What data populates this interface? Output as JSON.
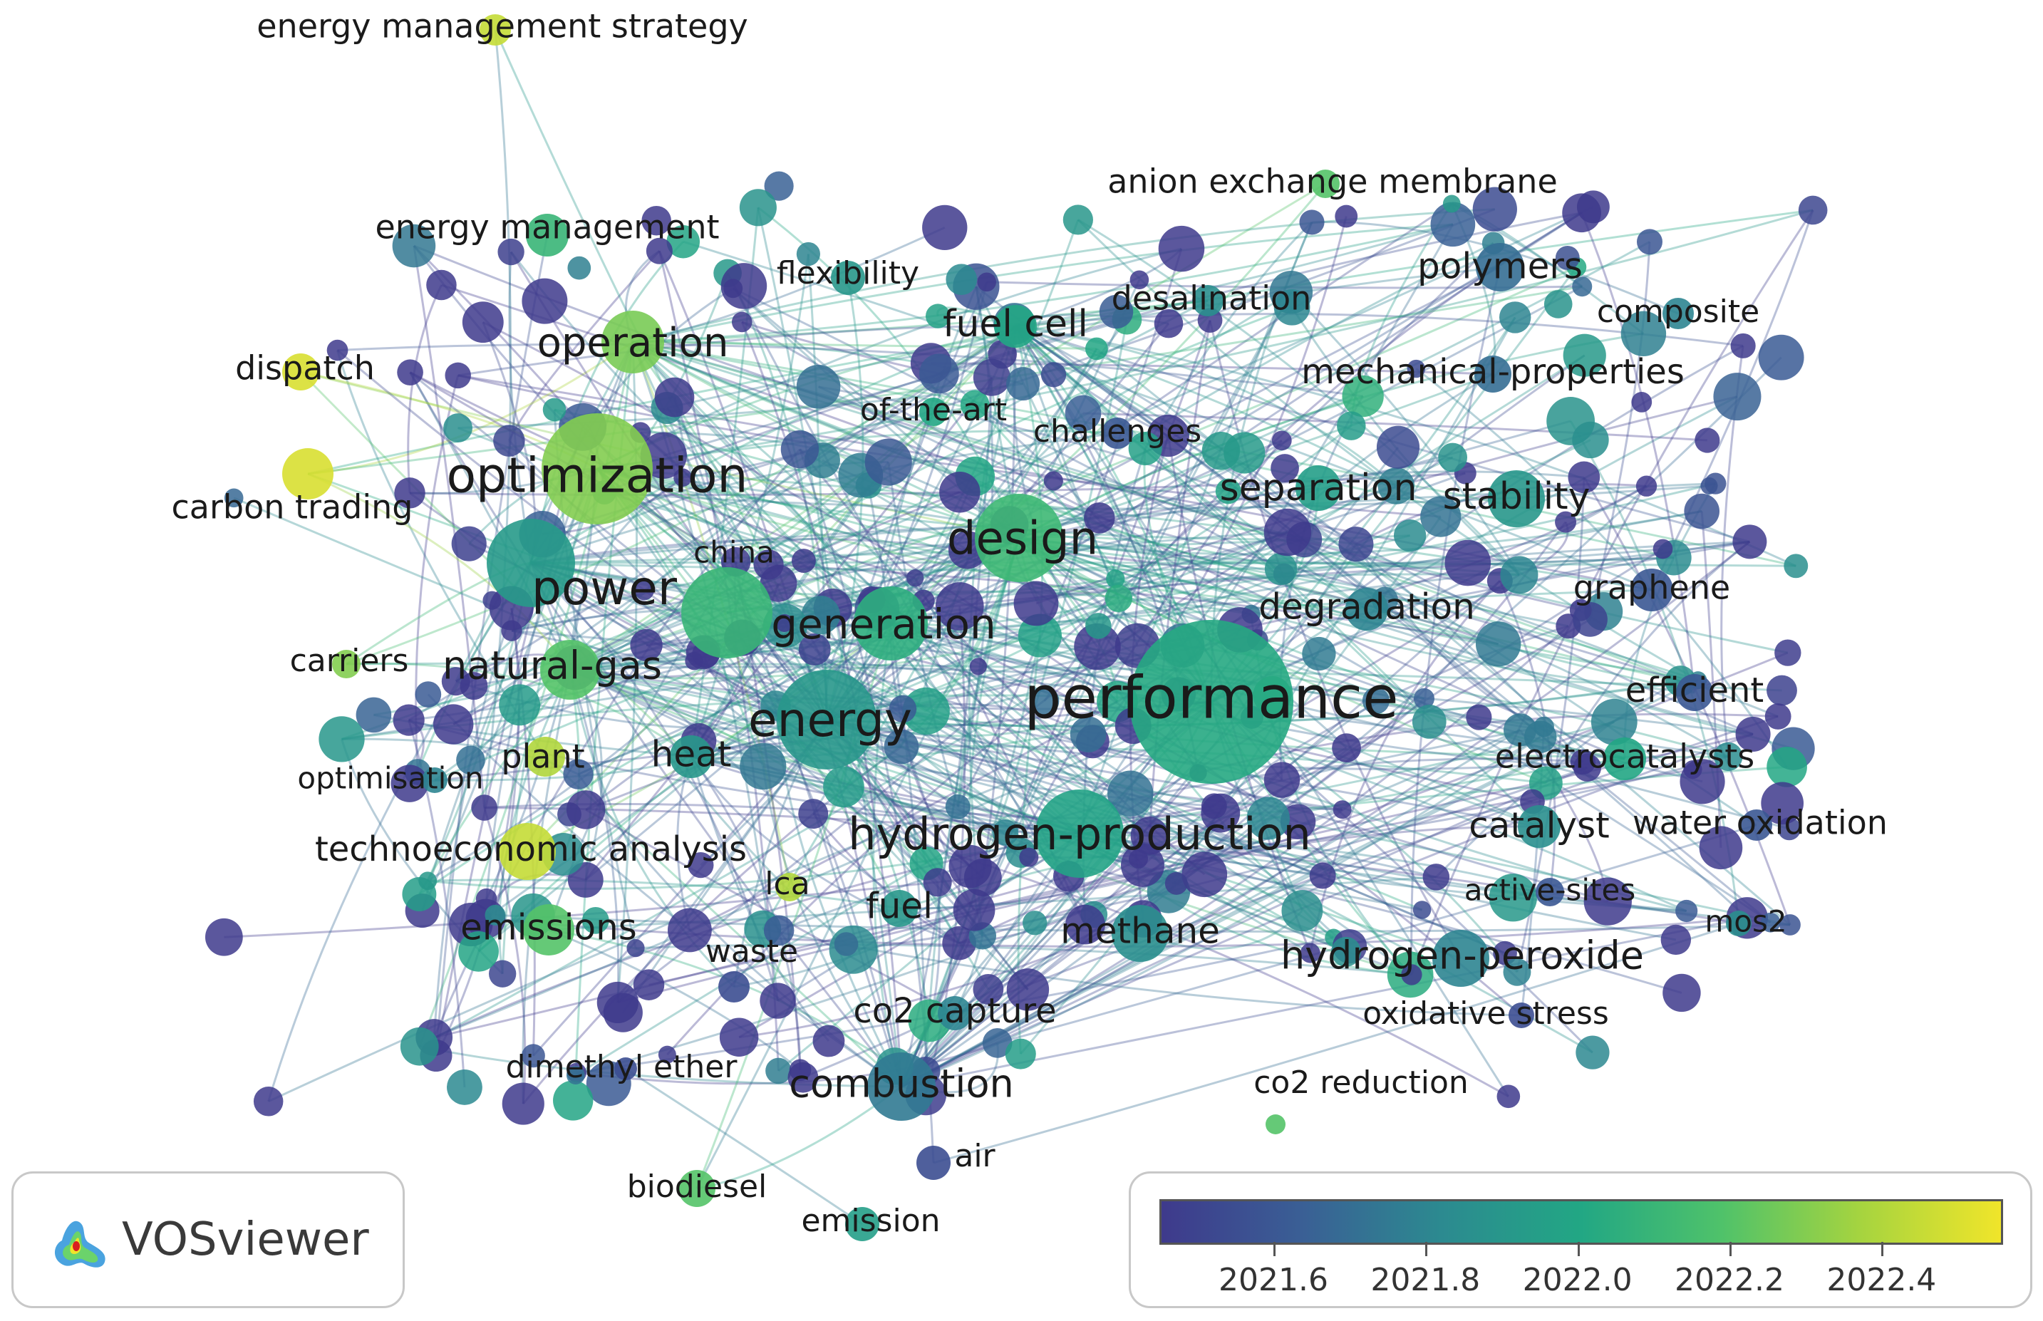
{
  "colormap": {
    "stops": [
      "#3e3a8c",
      "#3a5f95",
      "#2c8a90",
      "#22a784",
      "#4fc26a",
      "#a6d43f",
      "#f0e52a"
    ],
    "min": 2021.45,
    "max": 2022.56
  },
  "legend": {
    "ticks": [
      "2021.6",
      "2021.8",
      "2022.0",
      "2022.2",
      "2022.4"
    ],
    "tick_values": [
      2021.6,
      2021.8,
      2022.0,
      2022.2,
      2022.4
    ]
  },
  "logo": {
    "text": "VOSviewer"
  },
  "keywords": [
    {
      "label": "performance",
      "year": 2022.02
    },
    {
      "label": "optimization",
      "year": 2022.3
    },
    {
      "label": "power",
      "year": 2021.92
    },
    {
      "label": "energy",
      "year": 2021.9
    },
    {
      "label": "design",
      "year": 2022.12
    },
    {
      "label": "hydrogen-production",
      "year": 2021.98
    },
    {
      "label": "generation",
      "year": 2022.05
    },
    {
      "label": "natural-gas",
      "year": 2022.2
    },
    {
      "label": "operation",
      "year": 2022.28
    },
    {
      "label": "heat",
      "year": 2021.9
    },
    {
      "label": "fuel cell",
      "year": 2022.0
    },
    {
      "label": "combustion",
      "year": 2021.75
    },
    {
      "label": "methane",
      "year": 2021.85
    },
    {
      "label": "hydrogen-peroxide",
      "year": 2021.8
    },
    {
      "label": "catalyst",
      "year": 2021.85
    },
    {
      "label": "stability",
      "year": 2021.9
    },
    {
      "label": "separation",
      "year": 2021.95
    },
    {
      "label": "degradation",
      "year": 2021.8
    },
    {
      "label": "polymers",
      "year": 2021.7
    },
    {
      "label": "emissions",
      "year": 2022.2
    },
    {
      "label": "fuel",
      "year": 2021.9
    },
    {
      "label": "energy management",
      "year": 2022.1
    },
    {
      "label": "energy management strategy",
      "year": 2022.45
    },
    {
      "label": "anion exchange membrane",
      "year": 2022.2
    },
    {
      "label": "desalination",
      "year": 2021.85
    },
    {
      "label": "flexibility",
      "year": 2021.9
    },
    {
      "label": "of-the-art",
      "year": 2022.0
    },
    {
      "label": "challenges",
      "year": 2021.6
    },
    {
      "label": "mechanical-properties",
      "year": 2021.7
    },
    {
      "label": "composite",
      "year": 2021.8
    },
    {
      "label": "graphene",
      "year": 2021.6
    },
    {
      "label": "efficient",
      "year": 2021.6
    },
    {
      "label": "electrocatalysts",
      "year": 2022.0
    },
    {
      "label": "water oxidation",
      "year": 2021.6
    },
    {
      "label": "active-sites",
      "year": 2021.6
    },
    {
      "label": "mos2",
      "year": 2021.85
    },
    {
      "label": "oxidative stress",
      "year": 2021.55
    },
    {
      "label": "co2 reduction",
      "year": 2022.2
    },
    {
      "label": "co2 capture",
      "year": 2021.8
    },
    {
      "label": "waste",
      "year": 2021.55
    },
    {
      "label": "lca",
      "year": 2022.4
    },
    {
      "label": "dimethyl ether",
      "year": 2021.55
    },
    {
      "label": "biodiesel",
      "year": 2022.2
    },
    {
      "label": "air",
      "year": 2021.55
    },
    {
      "label": "emission",
      "year": 2021.95
    },
    {
      "label": "technoeconomic analysis",
      "year": 2022.45
    },
    {
      "label": "plant",
      "year": 2022.4
    },
    {
      "label": "optimisation",
      "year": 2021.8
    },
    {
      "label": "carriers",
      "year": 2022.3
    },
    {
      "label": "china",
      "year": 2022.1
    },
    {
      "label": "carbon trading",
      "year": 2022.5
    },
    {
      "label": "dispatch",
      "year": 2022.5
    }
  ]
}
